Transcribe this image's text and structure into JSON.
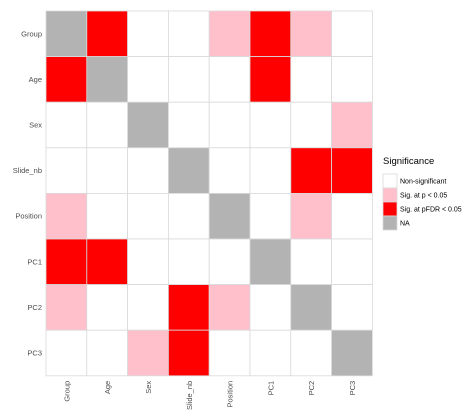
{
  "colors": {
    "Non-significant": "#ffffff",
    "Sig. at p < 0.05": "#ffc0cb",
    "Sig. at pFDR < 0.05": "#ff0000",
    "NA": "#b3b3b3",
    "grid_line": "#d9d9d9"
  },
  "chart_data": {
    "type": "heatmap",
    "x_categories": [
      "Group",
      "Age",
      "Sex",
      "Slide_nb",
      "Position",
      "PC1",
      "PC2",
      "PC3"
    ],
    "y_categories": [
      "Group",
      "Age",
      "Sex",
      "Slide_nb",
      "Position",
      "PC1",
      "PC2",
      "PC3"
    ],
    "levels": [
      "Non-significant",
      "Sig. at p < 0.05",
      "Sig. at pFDR < 0.05",
      "NA"
    ],
    "matrix": [
      [
        "NA",
        "Sig. at pFDR < 0.05",
        "Non-significant",
        "Non-significant",
        "Sig. at p < 0.05",
        "Sig. at pFDR < 0.05",
        "Sig. at p < 0.05",
        "Non-significant"
      ],
      [
        "Sig. at pFDR < 0.05",
        "NA",
        "Non-significant",
        "Non-significant",
        "Non-significant",
        "Sig. at pFDR < 0.05",
        "Non-significant",
        "Non-significant"
      ],
      [
        "Non-significant",
        "Non-significant",
        "NA",
        "Non-significant",
        "Non-significant",
        "Non-significant",
        "Non-significant",
        "Sig. at p < 0.05"
      ],
      [
        "Non-significant",
        "Non-significant",
        "Non-significant",
        "NA",
        "Non-significant",
        "Non-significant",
        "Sig. at pFDR < 0.05",
        "Sig. at pFDR < 0.05"
      ],
      [
        "Sig. at p < 0.05",
        "Non-significant",
        "Non-significant",
        "Non-significant",
        "NA",
        "Non-significant",
        "Sig. at p < 0.05",
        "Non-significant"
      ],
      [
        "Sig. at pFDR < 0.05",
        "Sig. at pFDR < 0.05",
        "Non-significant",
        "Non-significant",
        "Non-significant",
        "NA",
        "Non-significant",
        "Non-significant"
      ],
      [
        "Sig. at p < 0.05",
        "Non-significant",
        "Non-significant",
        "Sig. at pFDR < 0.05",
        "Sig. at p < 0.05",
        "Non-significant",
        "NA",
        "Non-significant"
      ],
      [
        "Non-significant",
        "Non-significant",
        "Sig. at p < 0.05",
        "Sig. at pFDR < 0.05",
        "Non-significant",
        "Non-significant",
        "Non-significant",
        "NA"
      ]
    ],
    "legend": {
      "title": "Significance",
      "position": "right",
      "entries": [
        "Non-significant",
        "Sig. at p < 0.05",
        "Sig. at pFDR < 0.05",
        "NA"
      ]
    },
    "title": "",
    "xlabel": "",
    "ylabel": ""
  }
}
